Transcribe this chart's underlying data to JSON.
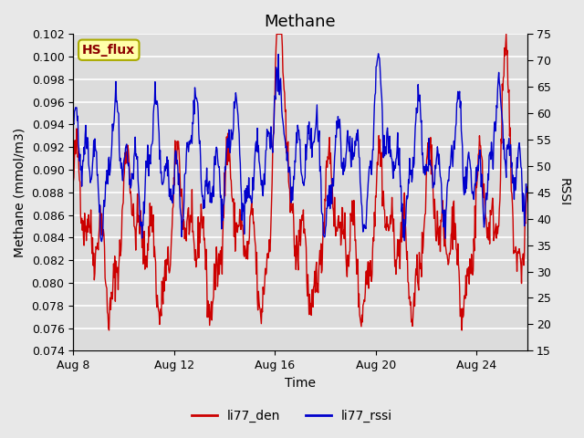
{
  "title": "Methane",
  "xlabel": "Time",
  "ylabel_left": "Methane (mmol/m3)",
  "ylabel_right": "RSSI",
  "ylim_left": [
    0.074,
    0.102
  ],
  "ylim_right": [
    15,
    75
  ],
  "yticks_left": [
    0.074,
    0.076,
    0.078,
    0.08,
    0.082,
    0.084,
    0.086,
    0.088,
    0.09,
    0.092,
    0.094,
    0.096,
    0.098,
    0.1,
    0.102
  ],
  "yticks_right": [
    15,
    20,
    25,
    30,
    35,
    40,
    45,
    50,
    55,
    60,
    65,
    70,
    75
  ],
  "xtick_positions": [
    0,
    4,
    8,
    12,
    16
  ],
  "xtick_labels": [
    "Aug 8",
    "Aug 12",
    "Aug 16",
    "Aug 20",
    "Aug 24"
  ],
  "color_red": "#CC0000",
  "color_blue": "#0000CC",
  "legend_label_red": "li77_den",
  "legend_label_blue": "li77_rssi",
  "annotation_text": "HS_flux",
  "annotation_bg": "#FFFFAA",
  "annotation_border": "#AAAA00",
  "bg_color": "#E8E8E8",
  "plot_bg_color": "#DCDCDC",
  "grid_color": "#FFFFFF",
  "title_fontsize": 13,
  "axis_fontsize": 10,
  "tick_fontsize": 9,
  "legend_fontsize": 10,
  "xlim": [
    0,
    18
  ],
  "n_points": 800,
  "seed": 42
}
